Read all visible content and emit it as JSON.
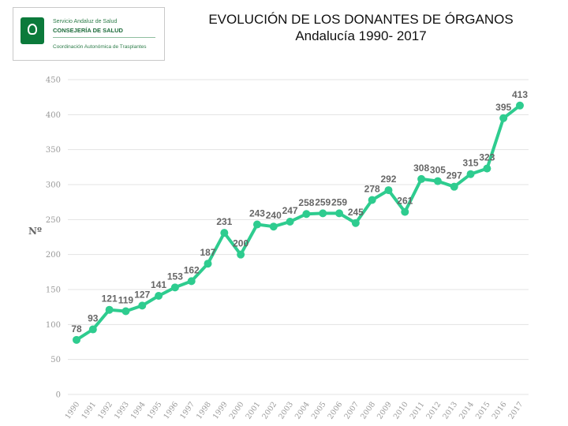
{
  "logo": {
    "line1": "Servicio Andaluz de Salud",
    "line2": "CONSEJERÍA DE SALUD",
    "line3": "Coordinación Autonómica de Trasplantes",
    "icon": "junta-andalucia-emblem-icon"
  },
  "chart_data": {
    "type": "line",
    "title": "EVOLUCIÓN DE LOS DONANTES DE ÓRGANOS",
    "subtitle": "Andalucía 1990- 2017",
    "xlabel": "",
    "ylabel": "Nº",
    "ylim": [
      0,
      450
    ],
    "yticks": [
      0,
      50,
      100,
      150,
      200,
      250,
      300,
      350,
      400,
      450
    ],
    "grid": true,
    "color": "#2ecc8f",
    "x": [
      "1990",
      "1991",
      "1992",
      "1993",
      "1994",
      "1995",
      "1996",
      "1997",
      "1998",
      "1999",
      "2000",
      "2001",
      "2002",
      "2003",
      "2004",
      "2005",
      "2006",
      "2007",
      "2008",
      "2009",
      "2010",
      "2011",
      "2012",
      "2013",
      "2014",
      "2015",
      "2016",
      "2017"
    ],
    "values": [
      78,
      93,
      121,
      119,
      127,
      141,
      153,
      162,
      187,
      231,
      200,
      243,
      240,
      247,
      258,
      259,
      259,
      245,
      278,
      292,
      261,
      308,
      305,
      297,
      315,
      323,
      395,
      413
    ],
    "labels": [
      "78",
      "93",
      "121",
      "119",
      "127",
      "141",
      "153",
      "162",
      "187",
      "231",
      "200",
      "243",
      "240",
      "247",
      "258",
      "259",
      "259",
      "245",
      "278",
      "292",
      "261",
      "308",
      "305",
      "297",
      "315",
      "323",
      "395",
      "413"
    ]
  }
}
